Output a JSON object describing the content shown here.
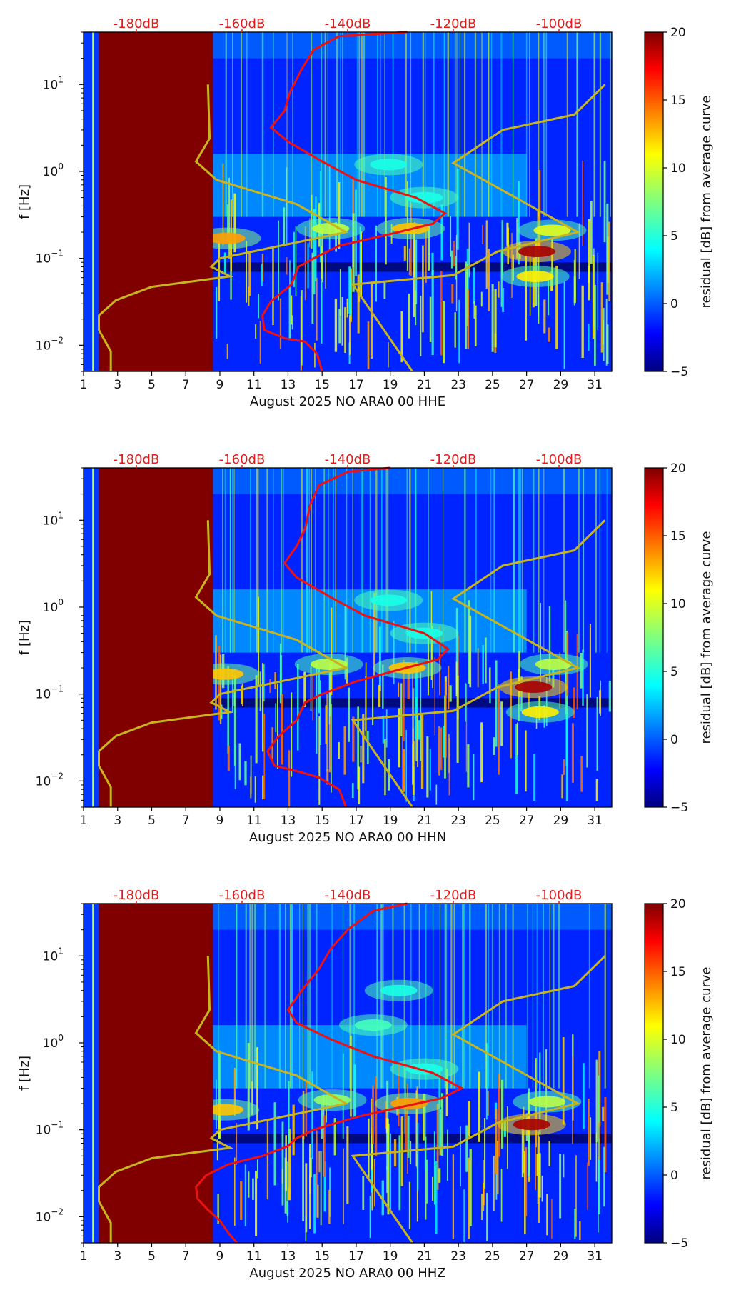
{
  "chart_data": [
    {
      "type": "heatmap",
      "xlabel": "August 2025 NO ARA0 00 HHE",
      "ylabel": "f [Hz]",
      "x_ticks": [
        "1",
        "3",
        "5",
        "7",
        "9",
        "11",
        "13",
        "15",
        "17",
        "19",
        "21",
        "23",
        "25",
        "27",
        "29",
        "31"
      ],
      "xlim": [
        1,
        32
      ],
      "ylim_hz": [
        0.005,
        40
      ],
      "y_ticks": [
        {
          "base": "10",
          "exp": "1",
          "value": 10
        },
        {
          "base": "10",
          "exp": "0",
          "value": 1
        },
        {
          "base": "10",
          "exp": "−1",
          "value": 0.1
        },
        {
          "base": "10",
          "exp": "−2",
          "value": 0.01
        }
      ],
      "db_scale_labels": [
        "-180dB",
        "-160dB",
        "-140dB",
        "-120dB",
        "-100dB"
      ],
      "db_scale_range": [
        -190,
        -90
      ],
      "colorbar": {
        "label": "residual [dB] from average curve",
        "ticks": [
          "20",
          "15",
          "10",
          "5",
          "0",
          "−5"
        ],
        "range": [
          -5,
          20
        ]
      },
      "no_data_days": [
        1.9,
        8.6
      ],
      "noise_models": {
        "low_noise_model": [
          [
            2.6,
            0.005
          ],
          [
            2.6,
            0.0085
          ],
          [
            1.9,
            0.015
          ],
          [
            1.9,
            0.022
          ],
          [
            2.9,
            0.033
          ],
          [
            5.0,
            0.047
          ],
          [
            9.6,
            0.062
          ],
          [
            8.5,
            0.08
          ],
          [
            9.0,
            0.1
          ],
          [
            16.4,
            0.2
          ],
          [
            13.5,
            0.42
          ],
          [
            8.8,
            0.8
          ],
          [
            7.6,
            1.3
          ],
          [
            8.4,
            2.4
          ],
          [
            8.3,
            10
          ]
        ],
        "high_noise_model": [
          [
            20.3,
            0.005
          ],
          [
            16.8,
            0.05
          ],
          [
            22.7,
            0.064
          ],
          [
            25.3,
            0.12
          ],
          [
            30.0,
            0.2
          ],
          [
            22.7,
            1.25
          ],
          [
            25.6,
            3.0
          ],
          [
            29.8,
            4.5
          ],
          [
            31.6,
            10
          ]
        ]
      },
      "mean_psd_curve": [
        [
          15.0,
          0.005
        ],
        [
          14.7,
          0.008
        ],
        [
          14.0,
          0.011
        ],
        [
          12.8,
          0.012
        ],
        [
          11.6,
          0.015
        ],
        [
          11.5,
          0.022
        ],
        [
          12.0,
          0.032
        ],
        [
          13.2,
          0.05
        ],
        [
          13.6,
          0.08
        ],
        [
          14.5,
          0.1
        ],
        [
          16.0,
          0.14
        ],
        [
          19.0,
          0.19
        ],
        [
          21.5,
          0.25
        ],
        [
          22.2,
          0.33
        ],
        [
          20.5,
          0.5
        ],
        [
          17.0,
          0.8
        ],
        [
          15.0,
          1.3
        ],
        [
          13.0,
          2.2
        ],
        [
          12.0,
          3.2
        ],
        [
          12.8,
          5.0
        ],
        [
          13.1,
          8.0
        ],
        [
          13.8,
          15.0
        ],
        [
          14.5,
          25.0
        ],
        [
          16.0,
          36.0
        ],
        [
          20.0,
          40.0
        ]
      ],
      "hotspots": [
        {
          "day": 20.2,
          "freq": 0.22,
          "value": 12
        },
        {
          "day": 27.6,
          "freq": 0.12,
          "value": 19
        },
        {
          "day": 27.5,
          "freq": 0.062,
          "value": 11
        },
        {
          "day": 28.5,
          "freq": 0.21,
          "value": 10
        },
        {
          "day": 15.5,
          "freq": 0.22,
          "value": 9
        },
        {
          "day": 9.4,
          "freq": 0.17,
          "value": 13
        },
        {
          "day": 18.9,
          "freq": 1.2,
          "value": 5
        },
        {
          "day": 21.0,
          "freq": 0.5,
          "value": 5
        }
      ]
    },
    {
      "type": "heatmap",
      "xlabel": "August 2025 NO ARA0 00 HHN",
      "ylabel": "f [Hz]",
      "x_ticks": [
        "1",
        "3",
        "5",
        "7",
        "9",
        "11",
        "13",
        "15",
        "17",
        "19",
        "21",
        "23",
        "25",
        "27",
        "29",
        "31"
      ],
      "xlim": [
        1,
        32
      ],
      "ylim_hz": [
        0.005,
        40
      ],
      "y_ticks": [
        {
          "base": "10",
          "exp": "1",
          "value": 10
        },
        {
          "base": "10",
          "exp": "0",
          "value": 1
        },
        {
          "base": "10",
          "exp": "−1",
          "value": 0.1
        },
        {
          "base": "10",
          "exp": "−2",
          "value": 0.01
        }
      ],
      "db_scale_labels": [
        "-180dB",
        "-160dB",
        "-140dB",
        "-120dB",
        "-100dB"
      ],
      "db_scale_range": [
        -190,
        -90
      ],
      "colorbar": {
        "label": "residual [dB] from average curve",
        "ticks": [
          "20",
          "15",
          "10",
          "5",
          "0",
          "−5"
        ],
        "range": [
          -5,
          20
        ]
      },
      "no_data_days": [
        1.9,
        8.6
      ],
      "noise_models": {
        "low_noise_model": [
          [
            2.6,
            0.005
          ],
          [
            2.6,
            0.0085
          ],
          [
            1.9,
            0.015
          ],
          [
            1.9,
            0.022
          ],
          [
            2.9,
            0.033
          ],
          [
            5.0,
            0.047
          ],
          [
            9.6,
            0.062
          ],
          [
            8.5,
            0.08
          ],
          [
            9.0,
            0.1
          ],
          [
            16.4,
            0.2
          ],
          [
            13.5,
            0.42
          ],
          [
            8.8,
            0.8
          ],
          [
            7.6,
            1.3
          ],
          [
            8.4,
            2.4
          ],
          [
            8.3,
            10
          ]
        ],
        "high_noise_model": [
          [
            20.3,
            0.005
          ],
          [
            16.8,
            0.05
          ],
          [
            22.7,
            0.064
          ],
          [
            25.3,
            0.12
          ],
          [
            30.0,
            0.2
          ],
          [
            22.7,
            1.25
          ],
          [
            25.6,
            3.0
          ],
          [
            29.8,
            4.5
          ],
          [
            31.6,
            10
          ]
        ]
      },
      "mean_psd_curve": [
        [
          16.4,
          0.005
        ],
        [
          16.0,
          0.008
        ],
        [
          14.8,
          0.011
        ],
        [
          13.5,
          0.013
        ],
        [
          12.2,
          0.015
        ],
        [
          11.8,
          0.022
        ],
        [
          12.4,
          0.032
        ],
        [
          13.5,
          0.05
        ],
        [
          14.0,
          0.08
        ],
        [
          15.0,
          0.1
        ],
        [
          17.0,
          0.14
        ],
        [
          19.5,
          0.19
        ],
        [
          21.8,
          0.25
        ],
        [
          22.4,
          0.33
        ],
        [
          21.0,
          0.5
        ],
        [
          17.5,
          0.8
        ],
        [
          15.5,
          1.3
        ],
        [
          13.5,
          2.2
        ],
        [
          12.8,
          3.2
        ],
        [
          13.5,
          5.0
        ],
        [
          14.0,
          8.0
        ],
        [
          14.3,
          15.0
        ],
        [
          14.8,
          25.0
        ],
        [
          16.5,
          36.0
        ],
        [
          19.0,
          40.0
        ]
      ],
      "hotspots": [
        {
          "day": 20.0,
          "freq": 0.2,
          "value": 12
        },
        {
          "day": 27.4,
          "freq": 0.12,
          "value": 19
        },
        {
          "day": 27.8,
          "freq": 0.062,
          "value": 11
        },
        {
          "day": 28.6,
          "freq": 0.22,
          "value": 9
        },
        {
          "day": 15.4,
          "freq": 0.22,
          "value": 9
        },
        {
          "day": 9.3,
          "freq": 0.17,
          "value": 12
        },
        {
          "day": 18.9,
          "freq": 1.2,
          "value": 5
        },
        {
          "day": 21.0,
          "freq": 0.5,
          "value": 5
        }
      ]
    },
    {
      "type": "heatmap",
      "xlabel": "August 2025 NO ARA0 00 HHZ",
      "ylabel": "f [Hz]",
      "x_ticks": [
        "1",
        "3",
        "5",
        "7",
        "9",
        "11",
        "13",
        "15",
        "17",
        "19",
        "21",
        "23",
        "25",
        "27",
        "29",
        "31"
      ],
      "xlim": [
        1,
        32
      ],
      "ylim_hz": [
        0.005,
        40
      ],
      "y_ticks": [
        {
          "base": "10",
          "exp": "1",
          "value": 10
        },
        {
          "base": "10",
          "exp": "0",
          "value": 1
        },
        {
          "base": "10",
          "exp": "−1",
          "value": 0.1
        },
        {
          "base": "10",
          "exp": "−2",
          "value": 0.01
        }
      ],
      "db_scale_labels": [
        "-180dB",
        "-160dB",
        "-140dB",
        "-120dB",
        "-100dB"
      ],
      "db_scale_range": [
        -190,
        -90
      ],
      "colorbar": {
        "label": "residual [dB] from average curve",
        "ticks": [
          "20",
          "15",
          "10",
          "5",
          "0",
          "−5"
        ],
        "range": [
          -5,
          20
        ]
      },
      "no_data_days": [
        1.9,
        8.6
      ],
      "noise_models": {
        "low_noise_model": [
          [
            2.6,
            0.005
          ],
          [
            2.6,
            0.0085
          ],
          [
            1.9,
            0.015
          ],
          [
            1.9,
            0.022
          ],
          [
            2.9,
            0.033
          ],
          [
            5.0,
            0.047
          ],
          [
            9.6,
            0.062
          ],
          [
            8.5,
            0.08
          ],
          [
            9.0,
            0.1
          ],
          [
            16.4,
            0.2
          ],
          [
            13.5,
            0.42
          ],
          [
            8.8,
            0.8
          ],
          [
            7.6,
            1.3
          ],
          [
            8.4,
            2.4
          ],
          [
            8.3,
            10
          ]
        ],
        "high_noise_model": [
          [
            20.3,
            0.005
          ],
          [
            16.8,
            0.05
          ],
          [
            22.7,
            0.064
          ],
          [
            25.3,
            0.12
          ],
          [
            30.0,
            0.2
          ],
          [
            22.7,
            1.25
          ],
          [
            25.6,
            3.0
          ],
          [
            29.8,
            4.5
          ],
          [
            31.6,
            10
          ]
        ]
      },
      "mean_psd_curve": [
        [
          10.0,
          0.005
        ],
        [
          9.5,
          0.0065
        ],
        [
          9.0,
          0.009
        ],
        [
          8.3,
          0.012
        ],
        [
          7.7,
          0.016
        ],
        [
          7.6,
          0.022
        ],
        [
          8.2,
          0.03
        ],
        [
          9.5,
          0.04
        ],
        [
          11.5,
          0.05
        ],
        [
          13.0,
          0.065
        ],
        [
          13.5,
          0.08
        ],
        [
          14.5,
          0.1
        ],
        [
          17.0,
          0.14
        ],
        [
          19.5,
          0.18
        ],
        [
          22.0,
          0.23
        ],
        [
          23.2,
          0.3
        ],
        [
          21.5,
          0.45
        ],
        [
          18.0,
          0.7
        ],
        [
          15.5,
          1.1
        ],
        [
          13.5,
          1.7
        ],
        [
          13.0,
          2.4
        ],
        [
          13.8,
          4.0
        ],
        [
          14.8,
          7.0
        ],
        [
          15.5,
          12.0
        ],
        [
          16.5,
          20.0
        ],
        [
          18.0,
          33.0
        ],
        [
          20.0,
          40.0
        ]
      ],
      "hotspots": [
        {
          "day": 20.1,
          "freq": 0.2,
          "value": 13
        },
        {
          "day": 27.3,
          "freq": 0.115,
          "value": 19
        },
        {
          "day": 28.2,
          "freq": 0.21,
          "value": 9
        },
        {
          "day": 15.6,
          "freq": 0.22,
          "value": 8
        },
        {
          "day": 9.3,
          "freq": 0.17,
          "value": 12
        },
        {
          "day": 18.0,
          "freq": 1.6,
          "value": 6
        },
        {
          "day": 19.5,
          "freq": 4.0,
          "value": 5
        },
        {
          "day": 21.0,
          "freq": 0.5,
          "value": 5
        }
      ]
    }
  ]
}
